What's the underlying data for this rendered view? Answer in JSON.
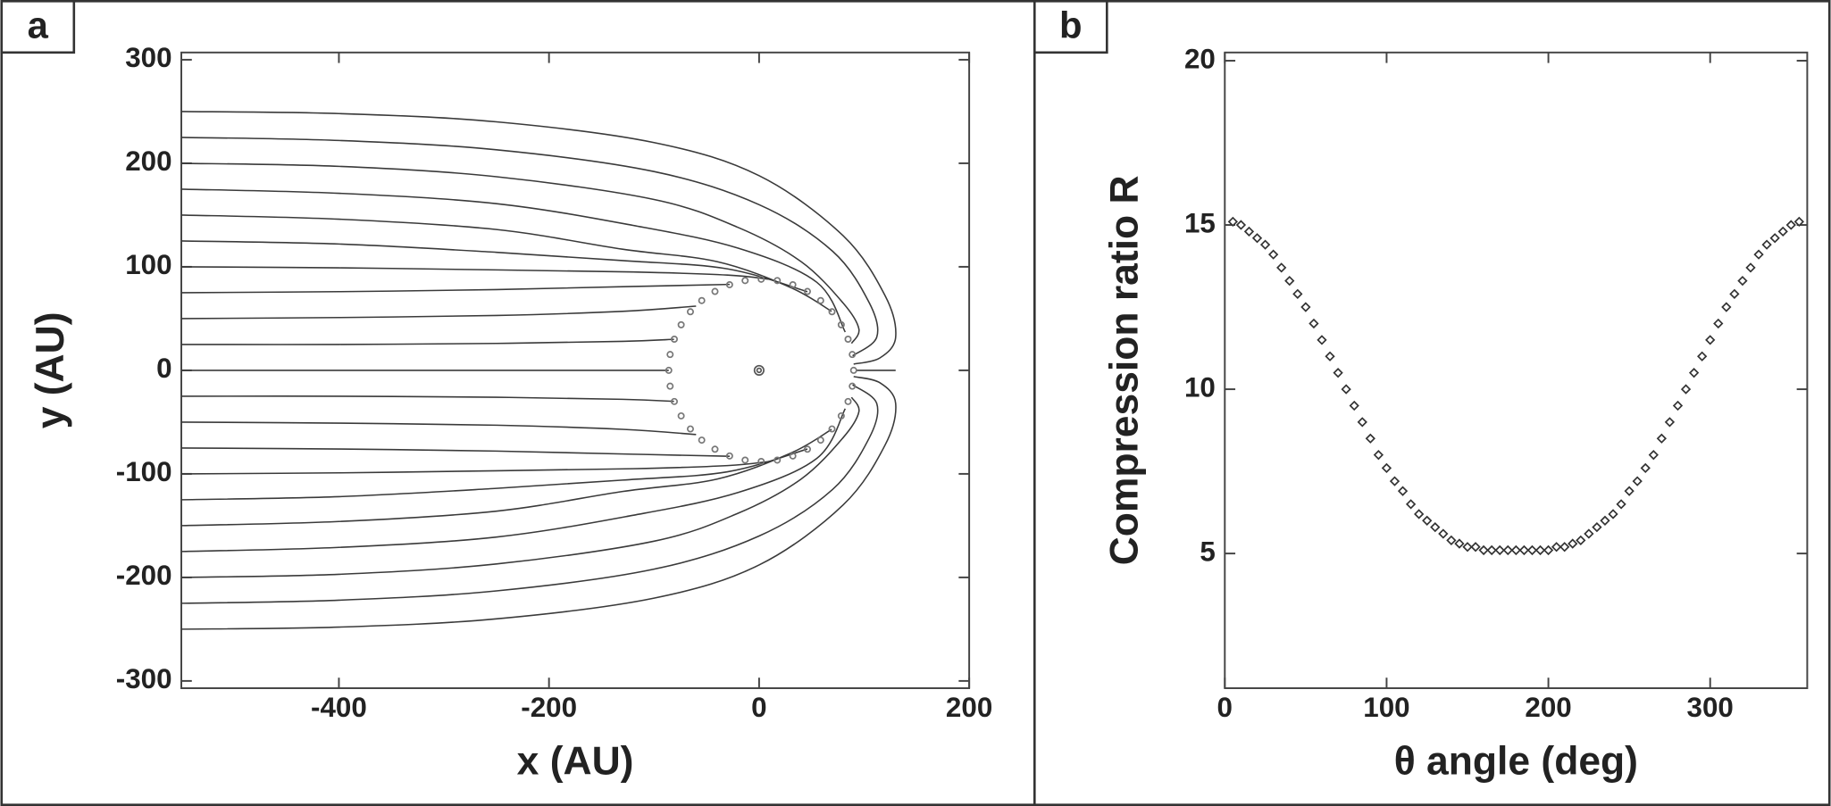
{
  "chart_data": [
    {
      "type": "line",
      "panel_label": "a",
      "xlabel": "x (AU)",
      "ylabel": "y (AU)",
      "color": "#3a3a3a",
      "xlim": [
        -550,
        200
      ],
      "xticks": [
        -400,
        -200,
        0,
        200
      ],
      "ylim": [
        -307,
        307
      ],
      "yticks": [
        -300,
        -200,
        -100,
        0,
        100,
        200,
        300
      ],
      "series": [
        {
          "x": [
            -550,
            -86
          ],
          "values": [
            0,
            0
          ]
        },
        {
          "x": [
            92,
            130
          ],
          "values": [
            0,
            0
          ]
        },
        {
          "x": [
            -550,
            -400,
            -250,
            -130,
            -81
          ],
          "values": [
            25,
            25,
            26,
            28,
            30
          ]
        },
        {
          "x": [
            -550,
            -400,
            -250,
            -130,
            -60
          ],
          "values": [
            50,
            51,
            53,
            57,
            62
          ]
        },
        {
          "x": [
            -550,
            -400,
            -250,
            -120,
            -28
          ],
          "values": [
            75,
            76,
            78,
            81,
            83
          ]
        },
        {
          "x": [
            -550,
            -400,
            -250,
            -120,
            -30,
            10
          ],
          "values": [
            100,
            99,
            97,
            95,
            92,
            88
          ]
        },
        {
          "x": [
            -550,
            -400,
            -250,
            -130,
            -30,
            46
          ],
          "values": [
            125,
            122,
            114,
            106,
            98,
            76
          ]
        },
        {
          "x": [
            -550,
            -400,
            -250,
            -130,
            -40,
            30,
            69
          ],
          "values": [
            150,
            146,
            136,
            117,
            105,
            80,
            57
          ]
        },
        {
          "x": [
            -550,
            -400,
            -250,
            -120,
            -20,
            55,
            82
          ],
          "values": [
            175,
            171,
            161,
            140,
            118,
            85,
            37
          ]
        },
        {
          "x": [
            -550,
            -400,
            -250,
            -100,
            -20,
            40,
            80,
            95,
            88
          ],
          "values": [
            200,
            197,
            187,
            165,
            138,
            105,
            65,
            40,
            26
          ]
        },
        {
          "x": [
            -550,
            -400,
            -250,
            -100,
            0,
            70,
            105,
            112,
            89
          ],
          "values": [
            225,
            222,
            213,
            192,
            160,
            115,
            65,
            32,
            14
          ]
        },
        {
          "x": [
            -550,
            -400,
            -250,
            -100,
            0,
            80,
            120,
            130,
            115,
            90
          ],
          "values": [
            250,
            248,
            240,
            220,
            188,
            130,
            72,
            32,
            12,
            6
          ]
        },
        {
          "x": [
            -550,
            -400,
            -250,
            -130,
            -81
          ],
          "values": [
            -25,
            -25,
            -26,
            -28,
            -30
          ]
        },
        {
          "x": [
            -550,
            -400,
            -250,
            -130,
            -60
          ],
          "values": [
            -50,
            -51,
            -53,
            -57,
            -62
          ]
        },
        {
          "x": [
            -550,
            -400,
            -250,
            -120,
            -28
          ],
          "values": [
            -75,
            -76,
            -78,
            -81,
            -83
          ]
        },
        {
          "x": [
            -550,
            -400,
            -250,
            -120,
            -30,
            10
          ],
          "values": [
            -100,
            -99,
            -97,
            -95,
            -92,
            -88
          ]
        },
        {
          "x": [
            -550,
            -400,
            -250,
            -130,
            -30,
            46
          ],
          "values": [
            -125,
            -122,
            -114,
            -106,
            -98,
            -76
          ]
        },
        {
          "x": [
            -550,
            -400,
            -250,
            -130,
            -40,
            30,
            69
          ],
          "values": [
            -150,
            -146,
            -136,
            -117,
            -105,
            -80,
            -57
          ]
        },
        {
          "x": [
            -550,
            -400,
            -250,
            -120,
            -20,
            55,
            82
          ],
          "values": [
            -175,
            -171,
            -161,
            -140,
            -118,
            -85,
            -37
          ]
        },
        {
          "x": [
            -550,
            -400,
            -250,
            -100,
            -20,
            40,
            80,
            95,
            88
          ],
          "values": [
            -200,
            -197,
            -187,
            -165,
            -138,
            -105,
            -65,
            -40,
            -26
          ]
        },
        {
          "x": [
            -550,
            -400,
            -250,
            -100,
            0,
            70,
            105,
            112,
            89
          ],
          "values": [
            -225,
            -222,
            -213,
            -192,
            -160,
            -115,
            -65,
            -32,
            -14
          ]
        },
        {
          "x": [
            -550,
            -400,
            -250,
            -100,
            0,
            80,
            120,
            130,
            115,
            90
          ],
          "values": [
            -250,
            -248,
            -240,
            -220,
            -188,
            -130,
            -72,
            -32,
            -12,
            -6
          ]
        }
      ],
      "points": {
        "color": "#777",
        "x": [
          90,
          88.7,
          84.7,
          78.2,
          69.4,
          58.6,
          46,
          32.1,
          17.3,
          2,
          -13.3,
          -28.1,
          -42,
          -54.6,
          -65.4,
          -74.2,
          -80.7,
          -84.7,
          -86,
          -84.7,
          -80.7,
          -74.2,
          -65.4,
          -54.6,
          -42,
          -28.1,
          -13.3,
          2,
          17.3,
          32.1,
          46,
          58.6,
          69.4,
          78.2,
          84.7,
          88.7
        ],
        "values": [
          0,
          15.3,
          30.1,
          44,
          56.6,
          67.4,
          76.2,
          82.7,
          86.7,
          88,
          86.7,
          82.7,
          76.2,
          67.4,
          56.6,
          44,
          30.1,
          15.3,
          0,
          -15.3,
          -30.1,
          -44,
          -56.6,
          -67.4,
          -76.2,
          -82.7,
          -86.7,
          -88,
          -86.7,
          -82.7,
          -76.2,
          -67.4,
          -56.6,
          -44,
          -30.1,
          -15.3
        ]
      },
      "origin": {
        "color": "#555",
        "x": [
          0
        ],
        "values": [
          0
        ]
      }
    },
    {
      "type": "scatter",
      "panel_label": "b",
      "xlabel": "θ angle (deg)",
      "ylabel": "Compression ratio R",
      "color": "#333",
      "xlim": [
        0,
        360
      ],
      "xticks": [
        0,
        100,
        200,
        300
      ],
      "ylim": [
        0.9,
        20.25
      ],
      "yticks": [
        5,
        10,
        15,
        20
      ],
      "x": [
        5,
        10,
        15,
        20,
        25,
        30,
        35,
        40,
        45,
        50,
        55,
        60,
        65,
        70,
        75,
        80,
        85,
        90,
        95,
        100,
        105,
        110,
        115,
        120,
        125,
        130,
        135,
        140,
        145,
        150,
        155,
        160,
        165,
        170,
        175,
        180,
        185,
        190,
        195,
        200,
        205,
        210,
        215,
        220,
        225,
        230,
        235,
        240,
        245,
        250,
        255,
        260,
        265,
        270,
        275,
        280,
        285,
        290,
        295,
        300,
        305,
        310,
        315,
        320,
        325,
        330,
        335,
        340,
        345,
        350,
        355
      ],
      "values": [
        15.1,
        15.0,
        14.8,
        14.6,
        14.4,
        14.1,
        13.7,
        13.3,
        12.9,
        12.5,
        12.0,
        11.5,
        11.0,
        10.5,
        10.0,
        9.5,
        9.0,
        8.5,
        8.0,
        7.6,
        7.2,
        6.9,
        6.5,
        6.2,
        6.0,
        5.8,
        5.6,
        5.4,
        5.3,
        5.2,
        5.2,
        5.1,
        5.1,
        5.1,
        5.1,
        5.1,
        5.1,
        5.1,
        5.1,
        5.1,
        5.2,
        5.2,
        5.3,
        5.4,
        5.6,
        5.8,
        6.0,
        6.2,
        6.5,
        6.9,
        7.2,
        7.6,
        8.0,
        8.5,
        9.0,
        9.5,
        10.0,
        10.5,
        11.0,
        11.5,
        12.0,
        12.5,
        12.9,
        13.3,
        13.7,
        14.1,
        14.4,
        14.6,
        14.8,
        15.0,
        15.1
      ]
    }
  ]
}
